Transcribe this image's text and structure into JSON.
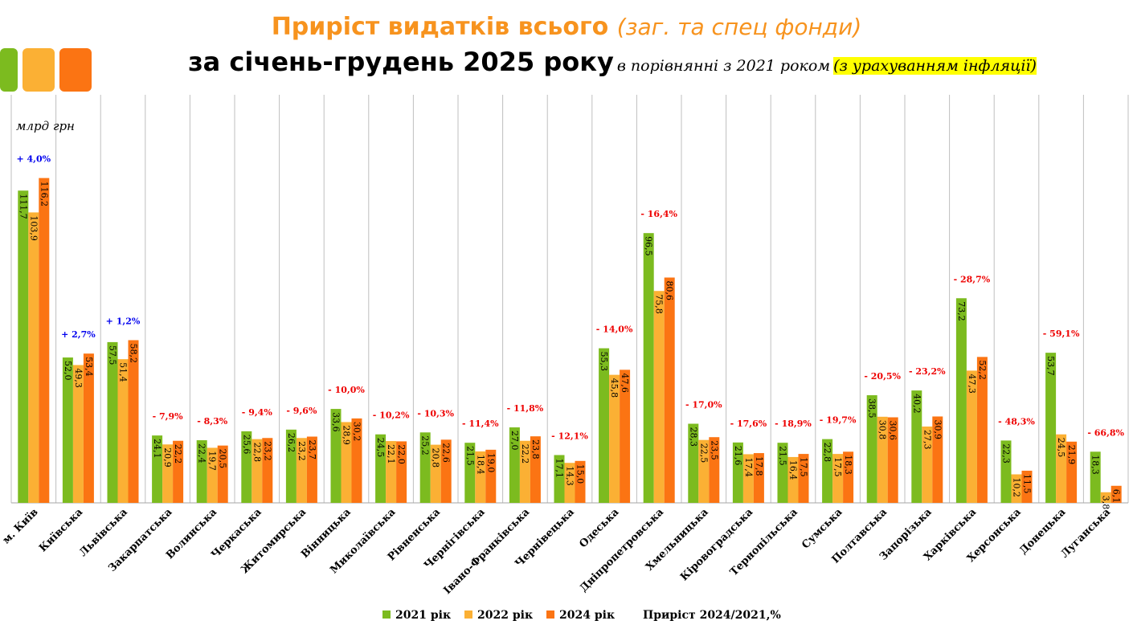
{
  "header": {
    "title_bold": "Приріст видатків всього",
    "title_italic": "(заг. та спец фонди)",
    "subtitle_bold": "за січень-грудень 2025 року",
    "subtitle_italic": "в порівнянні з 2021 роком",
    "subtitle_highlight": "(з урахуванням інфляції)"
  },
  "unit_label": "млрд грн",
  "colors": {
    "s2021": "#7CBB1F",
    "s2022": "#FBB034",
    "s2024": "#FB7413",
    "positive": "#0000EE",
    "negative": "#EE0000",
    "grid": "#BFBFBF",
    "highlight": "#FFFF00"
  },
  "legend": {
    "items": [
      "2021 рік",
      "2022 рік",
      "2024 рік"
    ],
    "growth_label": "Приріст 2024/2021,%"
  },
  "chart_data": {
    "type": "bar",
    "title": "Приріст видатків всього (заг. та спец фонди) за січень-грудень 2025 року в порівнянні з 2021 роком (з урахуванням інфляції)",
    "ylabel": "млрд грн",
    "ylim": [
      0,
      120
    ],
    "grid": true,
    "legend_position": "bottom",
    "categories": [
      "м. Київ",
      "Київська",
      "Львівська",
      "Закарпатська",
      "Волинська",
      "Черкаська",
      "Житомирська",
      "Вінницька",
      "Миколаївська",
      "Рівненська",
      "Чернігівська",
      "Івано-Франківська",
      "Чернівецька",
      "Одеська",
      "Дніпропетровська",
      "Хмельницька",
      "Кіровоградська",
      "Тернопільська",
      "Сумська",
      "Полтавська",
      "Запорізька",
      "Харківська",
      "Херсонська",
      "Донецька",
      "Луганська"
    ],
    "series": [
      {
        "name": "2021 рік",
        "values": [
          111.7,
          52.0,
          57.5,
          24.1,
          22.4,
          25.6,
          26.2,
          33.6,
          24.5,
          25.2,
          21.5,
          27.0,
          17.1,
          55.3,
          96.5,
          28.3,
          21.6,
          21.5,
          22.8,
          38.5,
          40.2,
          73.2,
          22.3,
          53.7,
          18.3
        ],
        "labels": [
          "111,7",
          "52,0",
          "57,5",
          "24,1",
          "22,4",
          "25,6",
          "26,2",
          "33,6",
          "24,5",
          "25,2",
          "21,5",
          "27,0",
          "17,1",
          "55,3",
          "96,5",
          "28,3",
          "21,6",
          "21,5",
          "22,8",
          "38,5",
          "40,2",
          "73,2",
          "22,3",
          "53,7",
          "18,3"
        ]
      },
      {
        "name": "2022 рік",
        "values": [
          103.9,
          49.3,
          51.4,
          20.9,
          19.7,
          22.8,
          23.2,
          28.9,
          22.1,
          20.8,
          18.4,
          22.2,
          14.3,
          45.8,
          75.8,
          22.5,
          17.4,
          16.4,
          17.5,
          30.8,
          27.3,
          47.3,
          10.2,
          24.5,
          3.8
        ],
        "labels": [
          "103,9",
          "49,3",
          "51,4",
          "20,9",
          "19,7",
          "22,8",
          "23,2",
          "28,9",
          "22,1",
          "20,8",
          "18,4",
          "22,2",
          "14,3",
          "45,8",
          "75,8",
          "22,5",
          "17,4",
          "16,4",
          "17,5",
          "30,8",
          "27,3",
          "47,3",
          "10,2",
          "24,5",
          "3,8"
        ]
      },
      {
        "name": "2024 рік",
        "values": [
          116.2,
          53.4,
          58.2,
          22.2,
          20.5,
          23.2,
          23.7,
          30.2,
          22.0,
          22.6,
          19.0,
          23.8,
          15.0,
          47.6,
          80.6,
          23.5,
          17.8,
          17.5,
          18.3,
          30.6,
          30.9,
          52.2,
          11.5,
          21.9,
          6.1
        ],
        "labels": [
          "116,2",
          "53,4",
          "58,2",
          "22,2",
          "20,5",
          "23,2",
          "23,7",
          "30,2",
          "22,0",
          "22,6",
          "19,0",
          "23,8",
          "15,0",
          "47,6",
          "80,6",
          "23,5",
          "17,8",
          "17,5",
          "18,3",
          "30,6",
          "30,9",
          "52,2",
          "11,5",
          "21,9",
          "6,1"
        ]
      }
    ],
    "growth": [
      "+ 4,0%",
      "+ 2,7%",
      "+ 1,2%",
      "- 7,9%",
      "- 8,3%",
      "- 9,4%",
      "- 9,6%",
      "- 10,0%",
      "- 10,2%",
      "- 10,3%",
      "- 11,4%",
      "- 11,8%",
      "- 12,1%",
      "- 14,0%",
      "- 16,4%",
      "- 17,0%",
      "- 17,6%",
      "- 18,9%",
      "- 19,7%",
      "- 20,5%",
      "- 23,2%",
      "- 28,7%",
      "- 48,3%",
      "- 59,1%",
      "- 66,8%"
    ],
    "growth_sign": [
      1,
      1,
      1,
      -1,
      -1,
      -1,
      -1,
      -1,
      -1,
      -1,
      -1,
      -1,
      -1,
      -1,
      -1,
      -1,
      -1,
      -1,
      -1,
      -1,
      -1,
      -1,
      -1,
      -1,
      -1
    ]
  }
}
